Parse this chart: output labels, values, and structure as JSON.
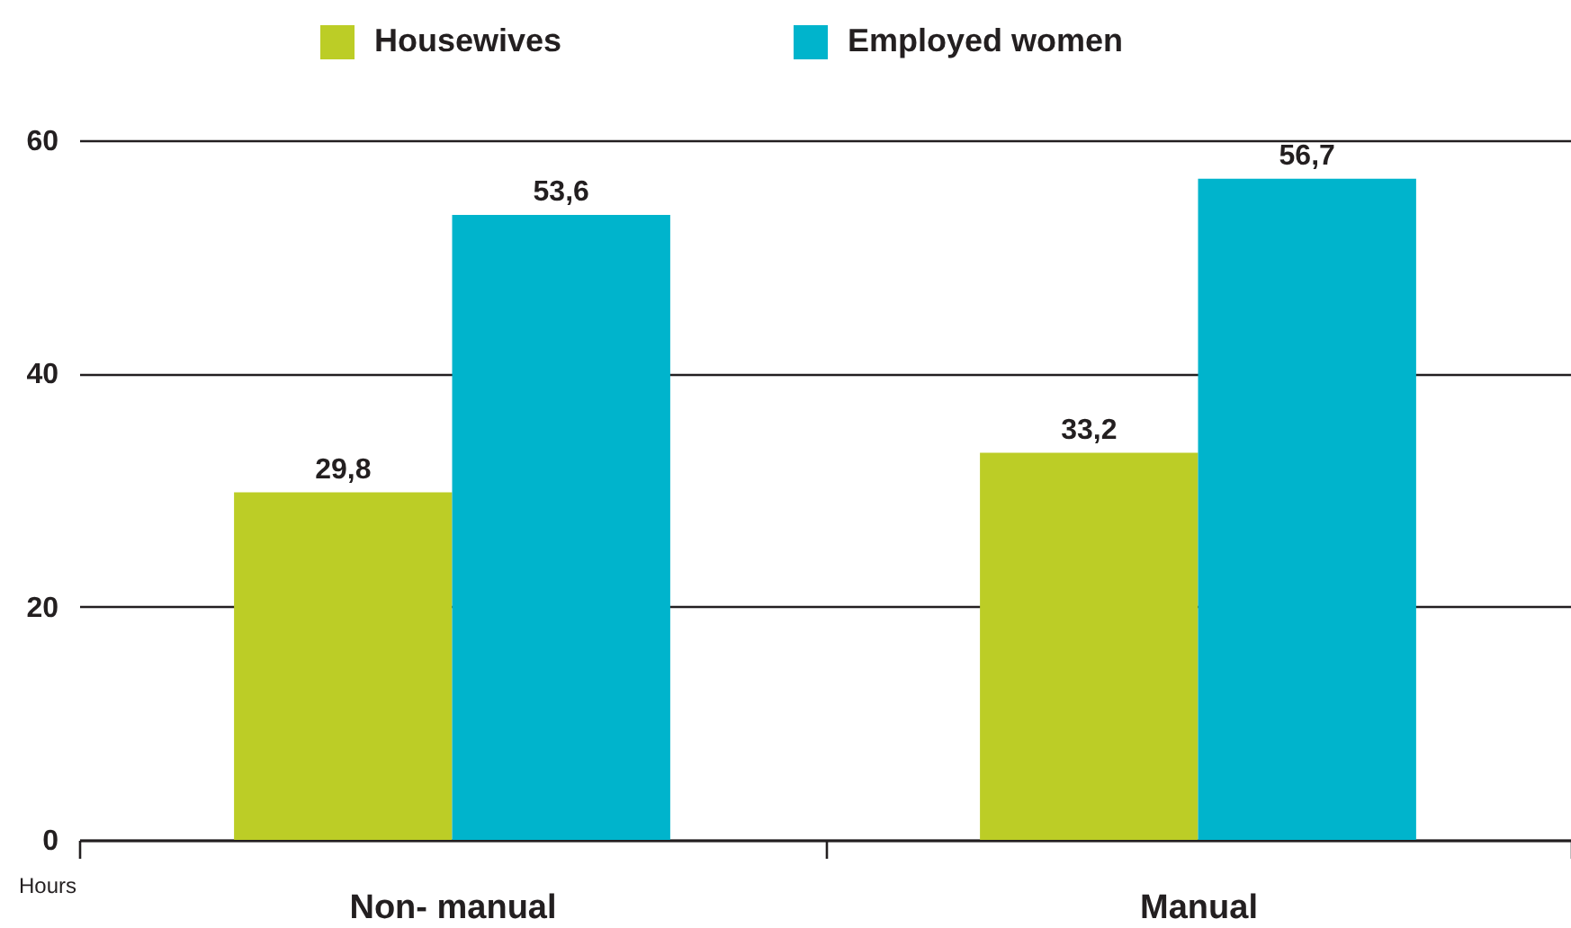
{
  "chart_data": {
    "type": "bar",
    "ylabel": "Hours",
    "categories": [
      "Non- manual",
      "Manual"
    ],
    "series": [
      {
        "name": "Housewives",
        "color": "#bccd26",
        "values": [
          29.8,
          33.2
        ],
        "value_labels": [
          "29,8",
          "33,2"
        ]
      },
      {
        "name": "Employed women",
        "color": "#00b4cc",
        "values": [
          53.6,
          56.7
        ],
        "value_labels": [
          "53,6",
          "56,7"
        ]
      }
    ],
    "ylim": [
      0,
      60
    ],
    "yticks": [
      0,
      20,
      40,
      60
    ],
    "grid": "y",
    "legend": "top"
  }
}
